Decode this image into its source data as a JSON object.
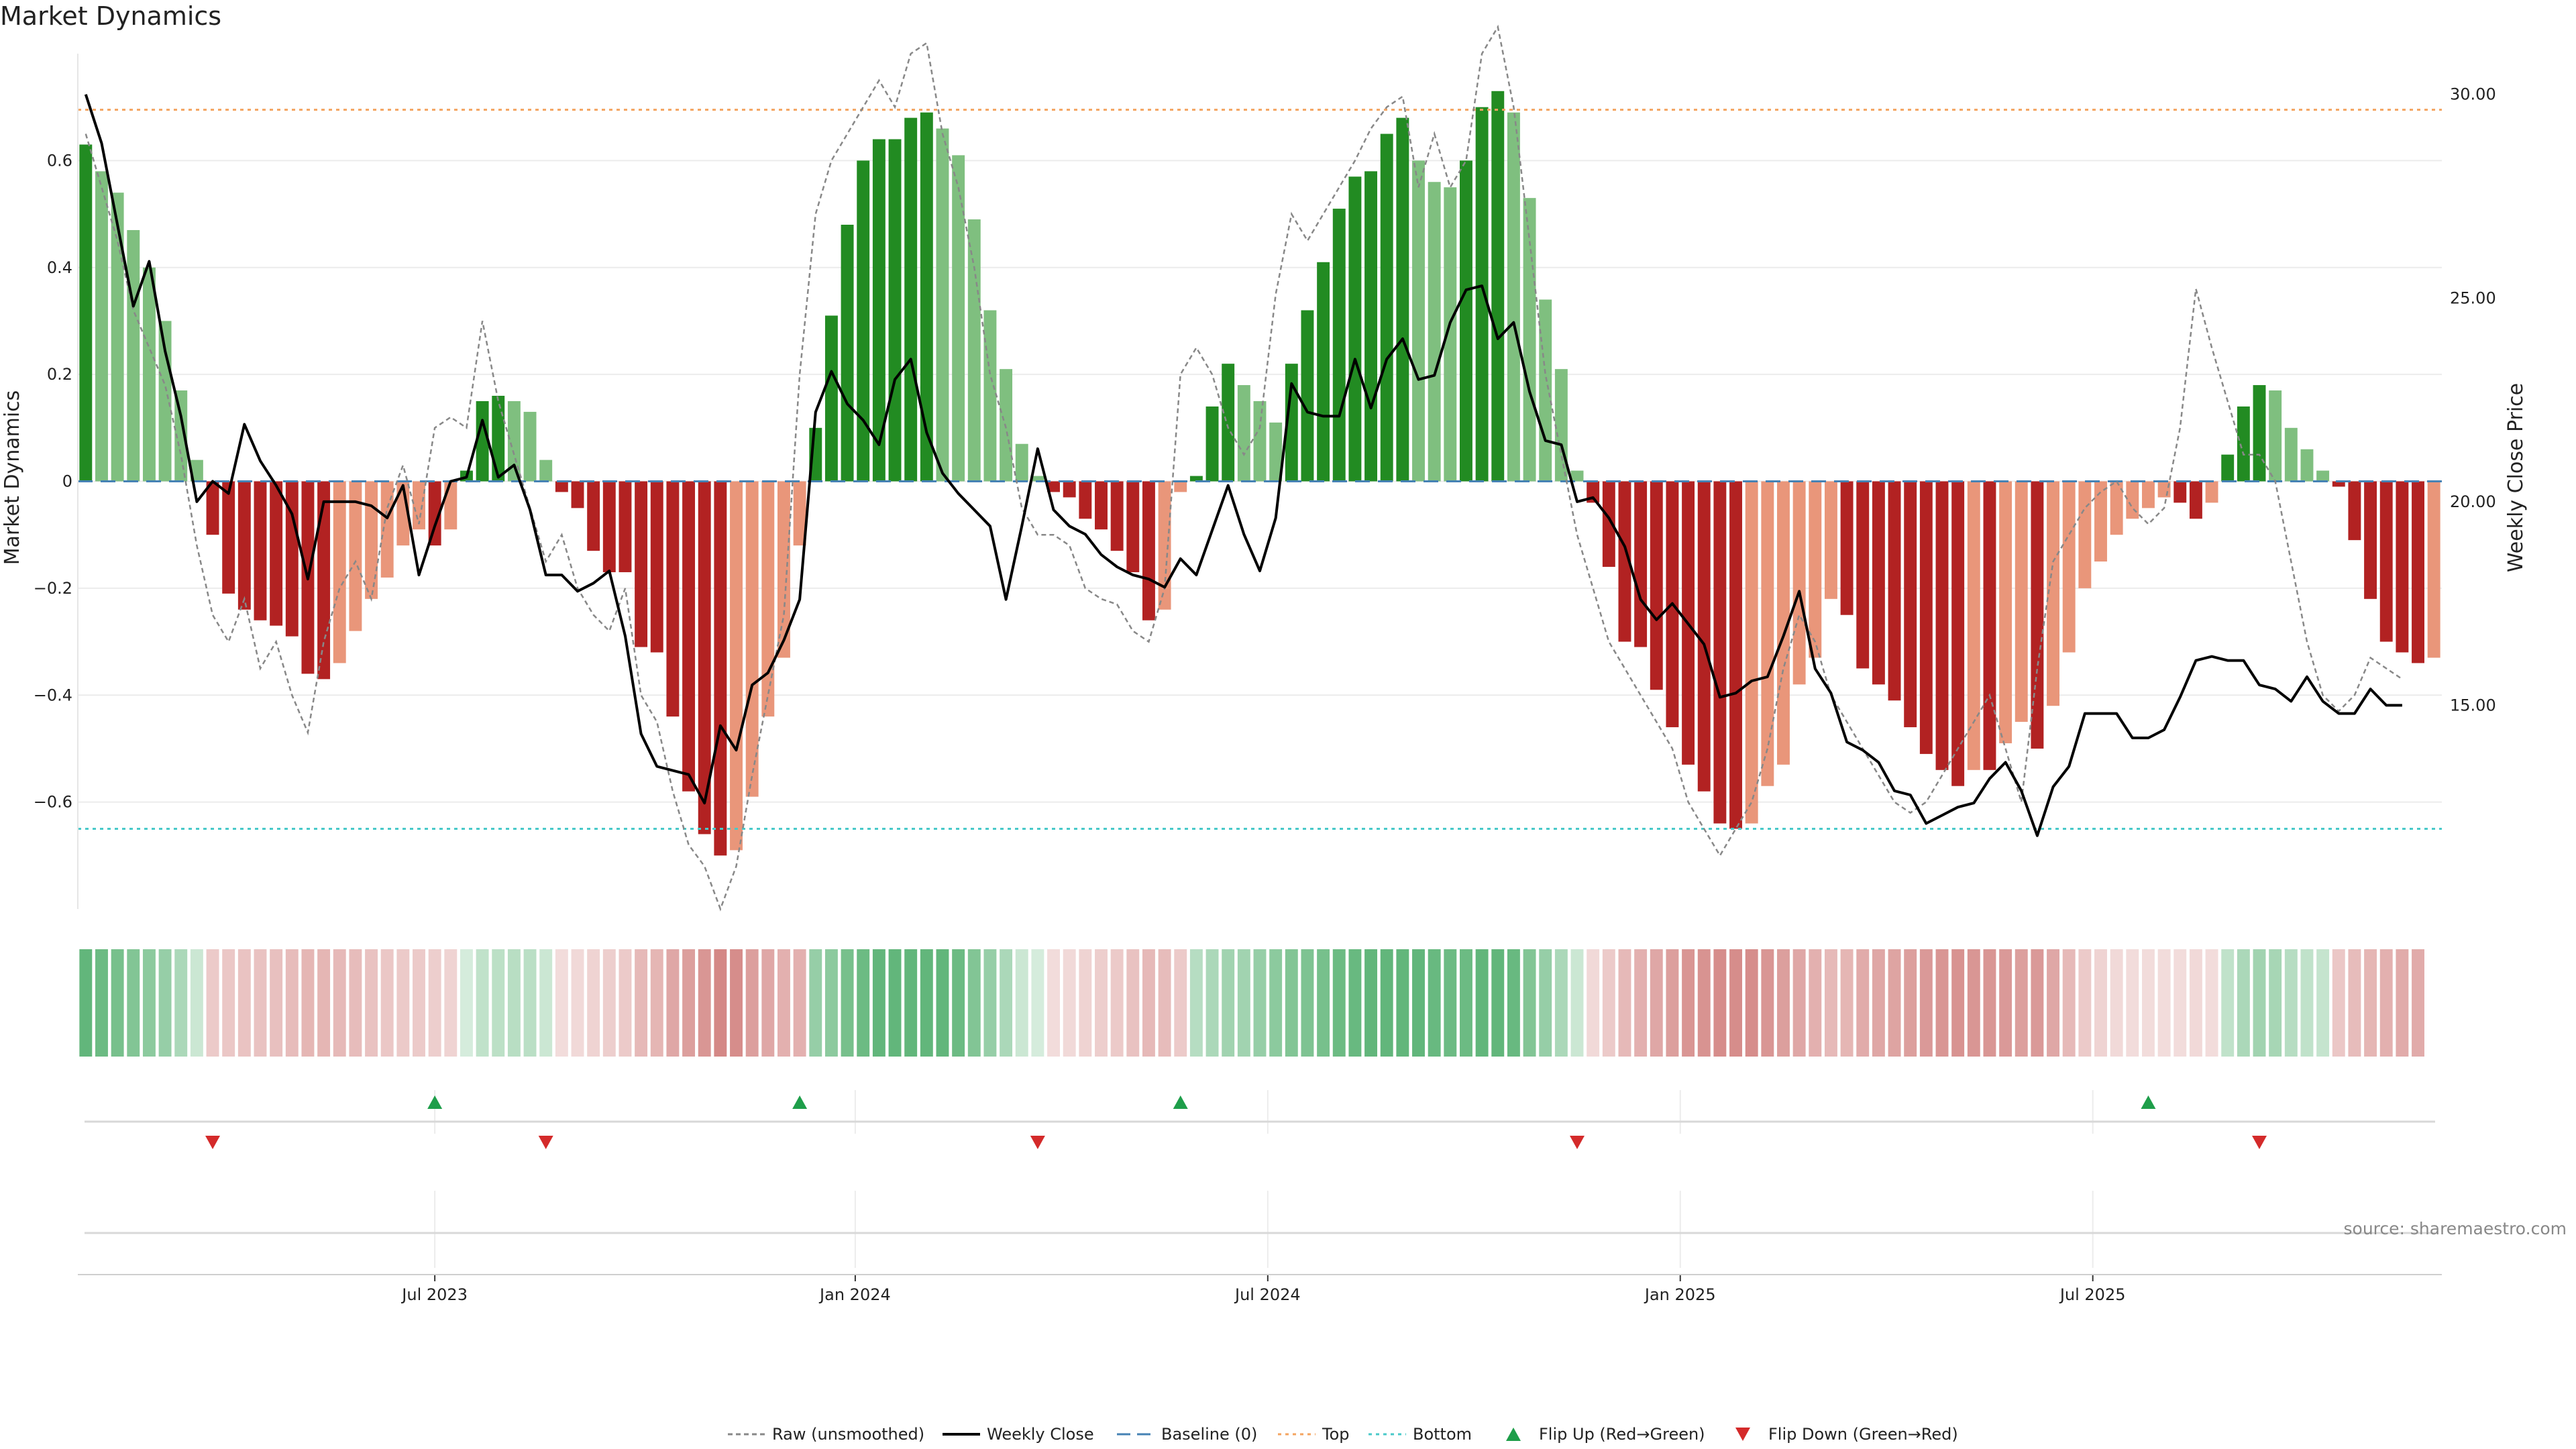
{
  "chart_data": {
    "type": "bar",
    "title": "Market Dynamics",
    "source": "source: sharemaestro.com",
    "y_left": {
      "label": "Market Dynamics",
      "ylim": [
        -0.8,
        0.8
      ],
      "ticks": [
        {
          "v": 0.6,
          "t": "0.6"
        },
        {
          "v": 0.4,
          "t": "0.4"
        },
        {
          "v": 0.2,
          "t": "0.2"
        },
        {
          "v": 0,
          "t": "0"
        },
        {
          "v": -0.2,
          "t": "−0.2"
        },
        {
          "v": -0.4,
          "t": "−0.4"
        },
        {
          "v": -0.6,
          "t": "−0.6"
        }
      ]
    },
    "y_right": {
      "label": "Weekly Close Price",
      "ylim": [
        10.0,
        31.0
      ],
      "ticks": [
        {
          "v": 30,
          "t": "30.00"
        },
        {
          "v": 25,
          "t": "25.00"
        },
        {
          "v": 20,
          "t": "20.00"
        },
        {
          "v": 15,
          "t": "15.00"
        }
      ]
    },
    "x_ticks": [
      {
        "i": 22,
        "t": "Jul 2023"
      },
      {
        "i": 48.5,
        "t": "Jan 2024"
      },
      {
        "i": 74.5,
        "t": "Jul 2024"
      },
      {
        "i": 100.5,
        "t": "Jan 2025"
      },
      {
        "i": 126.5,
        "t": "Jul 2025"
      }
    ],
    "top_line": 0.695,
    "bottom_line": -0.65,
    "baseline": 0,
    "smoothed": [
      0.63,
      0.58,
      0.54,
      0.47,
      0.4,
      0.3,
      0.17,
      0.04,
      -0.1,
      -0.21,
      -0.24,
      -0.26,
      -0.27,
      -0.29,
      -0.36,
      -0.37,
      -0.34,
      -0.28,
      -0.22,
      -0.18,
      -0.12,
      -0.09,
      -0.12,
      -0.09,
      0.02,
      0.15,
      0.16,
      0.15,
      0.13,
      0.04,
      -0.02,
      -0.05,
      -0.13,
      -0.17,
      -0.17,
      -0.31,
      -0.32,
      -0.44,
      -0.58,
      -0.66,
      -0.7,
      -0.69,
      -0.59,
      -0.44,
      -0.33,
      -0.12,
      0.1,
      0.31,
      0.48,
      0.6,
      0.64,
      0.64,
      0.68,
      0.69,
      0.66,
      0.61,
      0.49,
      0.32,
      0.21,
      0.07,
      0.01,
      -0.02,
      -0.03,
      -0.07,
      -0.09,
      -0.13,
      -0.17,
      -0.26,
      -0.24,
      -0.02,
      0.01,
      0.14,
      0.22,
      0.18,
      0.15,
      0.11,
      0.22,
      0.32,
      0.41,
      0.51,
      0.57,
      0.58,
      0.65,
      0.68,
      0.6,
      0.56,
      0.55,
      0.6,
      0.7,
      0.73,
      0.69,
      0.53,
      0.34,
      0.21,
      0.02,
      -0.04,
      -0.16,
      -0.3,
      -0.31,
      -0.39,
      -0.46,
      -0.53,
      -0.58,
      -0.64,
      -0.65,
      -0.64,
      -0.57,
      -0.53,
      -0.38,
      -0.33,
      -0.22,
      -0.25,
      -0.35,
      -0.38,
      -0.41,
      -0.46,
      -0.51,
      -0.54,
      -0.57,
      -0.54,
      -0.54,
      -0.49,
      -0.45,
      -0.5,
      -0.42,
      -0.32,
      -0.2,
      -0.15,
      -0.1,
      -0.07,
      -0.05,
      -0.03,
      -0.04,
      -0.07,
      -0.04,
      0.05,
      0.14,
      0.18,
      0.17,
      0.1,
      0.06,
      0.02,
      -0.01,
      -0.11,
      -0.22,
      -0.3,
      -0.32,
      -0.34,
      -0.33
    ],
    "raw": [
      0.65,
      0.55,
      0.45,
      0.32,
      0.25,
      0.18,
      0.05,
      -0.12,
      -0.25,
      -0.3,
      -0.22,
      -0.35,
      -0.3,
      -0.4,
      -0.47,
      -0.3,
      -0.2,
      -0.15,
      -0.22,
      -0.05,
      0.03,
      -0.08,
      0.1,
      0.12,
      0.1,
      0.3,
      0.15,
      0.05,
      -0.05,
      -0.15,
      -0.1,
      -0.2,
      -0.25,
      -0.28,
      -0.2,
      -0.4,
      -0.45,
      -0.58,
      -0.68,
      -0.72,
      -0.8,
      -0.72,
      -0.55,
      -0.4,
      -0.25,
      0.2,
      0.5,
      0.6,
      0.65,
      0.7,
      0.75,
      0.7,
      0.8,
      0.82,
      0.65,
      0.55,
      0.4,
      0.2,
      0.1,
      -0.05,
      -0.1,
      -0.1,
      -0.12,
      -0.2,
      -0.22,
      -0.23,
      -0.28,
      -0.3,
      -0.2,
      0.2,
      0.25,
      0.2,
      0.1,
      0.05,
      0.1,
      0.35,
      0.5,
      0.45,
      0.5,
      0.55,
      0.6,
      0.66,
      0.7,
      0.72,
      0.55,
      0.65,
      0.55,
      0.6,
      0.8,
      0.85,
      0.7,
      0.45,
      0.2,
      0.05,
      -0.1,
      -0.2,
      -0.3,
      -0.35,
      -0.4,
      -0.45,
      -0.5,
      -0.6,
      -0.65,
      -0.7,
      -0.65,
      -0.6,
      -0.5,
      -0.35,
      -0.25,
      -0.3,
      -0.4,
      -0.45,
      -0.5,
      -0.55,
      -0.6,
      -0.62,
      -0.6,
      -0.55,
      -0.5,
      -0.45,
      -0.4,
      -0.5,
      -0.6,
      -0.35,
      -0.15,
      -0.1,
      -0.05,
      -0.02,
      0.0,
      -0.05,
      -0.08,
      -0.05,
      0.1,
      0.36,
      0.25,
      0.15,
      0.05,
      0.05,
      0.0,
      -0.15,
      -0.3,
      -0.4,
      -0.43,
      -0.4,
      -0.33,
      -0.35,
      -0.37
    ],
    "close": [
      30.0,
      28.8,
      26.8,
      24.8,
      25.9,
      23.7,
      22.1,
      20.0,
      20.5,
      20.2,
      21.9,
      21.0,
      20.4,
      19.7,
      18.1,
      20.0,
      20.0,
      20.0,
      19.9,
      19.6,
      20.4,
      18.2,
      19.4,
      20.5,
      20.6,
      22.0,
      20.6,
      20.9,
      19.8,
      18.2,
      18.2,
      17.8,
      18.0,
      18.3,
      16.7,
      14.3,
      13.5,
      13.4,
      13.3,
      12.6,
      14.5,
      13.9,
      15.5,
      15.8,
      16.6,
      17.6,
      22.2,
      23.2,
      22.4,
      22.0,
      21.4,
      23.0,
      23.5,
      21.7,
      20.7,
      20.2,
      19.8,
      19.4,
      17.6,
      19.4,
      21.3,
      19.8,
      19.4,
      19.2,
      18.7,
      18.4,
      18.2,
      18.1,
      17.9,
      18.6,
      18.2,
      19.3,
      20.4,
      19.2,
      18.3,
      19.6,
      22.9,
      22.2,
      22.1,
      22.1,
      23.5,
      22.3,
      23.5,
      24.0,
      23.0,
      23.1,
      24.4,
      25.2,
      25.3,
      24.0,
      24.4,
      22.7,
      21.5,
      21.4,
      20.0,
      20.1,
      19.6,
      18.9,
      17.6,
      17.1,
      17.5,
      17.0,
      16.5,
      15.2,
      15.3,
      15.6,
      15.7,
      16.7,
      17.8,
      15.9,
      15.3,
      14.1,
      13.9,
      13.6,
      12.9,
      12.8,
      12.1,
      12.3,
      12.5,
      12.6,
      13.2,
      13.6,
      12.9,
      11.8,
      13.0,
      13.5,
      14.8,
      14.8,
      14.8,
      14.2,
      14.2,
      14.4,
      15.2,
      16.1,
      16.2,
      16.1,
      16.1,
      15.5,
      15.4,
      15.1,
      15.7,
      15.1,
      14.8,
      14.8,
      15.4,
      15.0,
      15.0
    ],
    "strip_alpha": [
      0.75,
      0.7,
      0.65,
      0.6,
      0.55,
      0.5,
      0.4,
      0.25,
      0.3,
      0.32,
      0.34,
      0.35,
      0.36,
      0.38,
      0.42,
      0.42,
      0.4,
      0.38,
      0.35,
      0.32,
      0.3,
      0.3,
      0.28,
      0.25,
      0.2,
      0.3,
      0.32,
      0.34,
      0.33,
      0.25,
      0.2,
      0.22,
      0.25,
      0.28,
      0.3,
      0.4,
      0.42,
      0.5,
      0.55,
      0.6,
      0.68,
      0.65,
      0.55,
      0.5,
      0.45,
      0.45,
      0.5,
      0.55,
      0.65,
      0.7,
      0.75,
      0.75,
      0.75,
      0.75,
      0.75,
      0.7,
      0.6,
      0.5,
      0.4,
      0.25,
      0.2,
      0.2,
      0.22,
      0.25,
      0.28,
      0.3,
      0.35,
      0.4,
      0.38,
      0.3,
      0.35,
      0.4,
      0.45,
      0.45,
      0.5,
      0.55,
      0.6,
      0.62,
      0.65,
      0.7,
      0.72,
      0.75,
      0.75,
      0.75,
      0.75,
      0.72,
      0.7,
      0.7,
      0.75,
      0.75,
      0.72,
      0.6,
      0.5,
      0.4,
      0.25,
      0.22,
      0.3,
      0.4,
      0.45,
      0.5,
      0.55,
      0.6,
      0.62,
      0.65,
      0.65,
      0.65,
      0.6,
      0.55,
      0.5,
      0.45,
      0.4,
      0.42,
      0.48,
      0.5,
      0.52,
      0.55,
      0.58,
      0.6,
      0.62,
      0.6,
      0.6,
      0.58,
      0.55,
      0.58,
      0.5,
      0.4,
      0.3,
      0.25,
      0.22,
      0.2,
      0.2,
      0.2,
      0.2,
      0.22,
      0.2,
      0.3,
      0.4,
      0.45,
      0.42,
      0.35,
      0.3,
      0.28,
      0.32,
      0.38,
      0.42,
      0.45,
      0.48,
      0.48
    ],
    "flips_up": [
      22,
      45,
      69,
      130
    ],
    "flips_down": [
      8,
      29,
      60,
      94,
      137
    ],
    "legend": [
      {
        "key": "raw",
        "label": "Raw (unsmoothed)"
      },
      {
        "key": "close",
        "label": "Weekly Close"
      },
      {
        "key": "baseline",
        "label": "Baseline (0)"
      },
      {
        "key": "top",
        "label": "Top"
      },
      {
        "key": "bottom",
        "label": "Bottom"
      },
      {
        "key": "flip_up",
        "label": "Flip Up (Red→Green)"
      },
      {
        "key": "flip_down",
        "label": "Flip Down (Green→Red)"
      }
    ],
    "colors": {
      "green_strong": "#228b22",
      "green_light": "#7fbf7f",
      "red_strong": "#b22222",
      "red_light": "#e9967a",
      "strip_green": "#2e9e4f",
      "strip_red": "#c0504d",
      "top_line": "#f4a460",
      "bottom_line": "#48c9c9",
      "baseline": "#4682b4",
      "raw": "#888888",
      "close": "#000000",
      "flip_up": "#1e9e4a",
      "flip_down": "#d42a2a"
    }
  }
}
